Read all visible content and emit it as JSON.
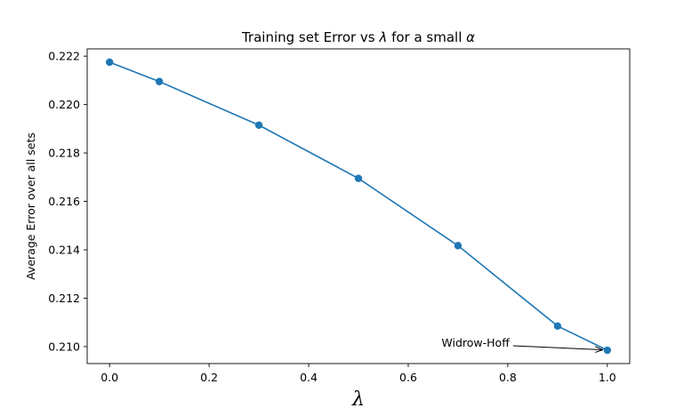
{
  "chart_data": {
    "type": "line",
    "title_text": "Training set Error vs ",
    "title_symbol_1": "λ",
    "title_mid": " for a small ",
    "title_symbol_2": "α",
    "xlabel": "λ",
    "ylabel": "Average Error over all sets",
    "xlim": [
      -0.045,
      1.045
    ],
    "ylim": [
      0.2093,
      0.2223
    ],
    "xticks": [
      0.0,
      0.2,
      0.4,
      0.6,
      0.8,
      1.0
    ],
    "xtick_labels": [
      "0.0",
      "0.2",
      "0.4",
      "0.6",
      "0.8",
      "1.0"
    ],
    "yticks": [
      0.21,
      0.212,
      0.214,
      0.216,
      0.218,
      0.22,
      0.222
    ],
    "ytick_labels": [
      "0.210",
      "0.212",
      "0.214",
      "0.216",
      "0.218",
      "0.220",
      "0.222"
    ],
    "grid": false,
    "series": [
      {
        "x": [
          0.0,
          0.1,
          0.3,
          0.5,
          0.7,
          0.9,
          1.0
        ],
        "y": [
          0.22175,
          0.22095,
          0.21915,
          0.21695,
          0.21417,
          0.21085,
          0.20985
        ],
        "color": "#1f77b4",
        "marker": "circle"
      }
    ],
    "annotations": [
      {
        "text": "Widrow-Hoff",
        "x": 1.0,
        "y": 0.20985
      }
    ]
  }
}
